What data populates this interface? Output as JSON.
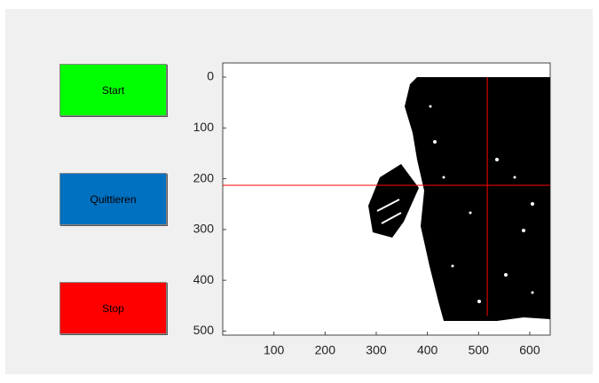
{
  "buttons": [
    {
      "label": "Start",
      "color": "#00ff00"
    },
    {
      "label": "Quittieren",
      "color": "#0070c0"
    },
    {
      "label": "Stop",
      "color": "#ff0000"
    }
  ],
  "axes": {
    "xlim": [
      0,
      640
    ],
    "ylim": [
      -28,
      508
    ],
    "xticks": [
      100,
      200,
      300,
      400,
      500,
      600
    ],
    "yticks": [
      0,
      100,
      200,
      300,
      400,
      500
    ],
    "crosshair": {
      "x": 517,
      "y": 213,
      "color": "#ff0000"
    }
  }
}
